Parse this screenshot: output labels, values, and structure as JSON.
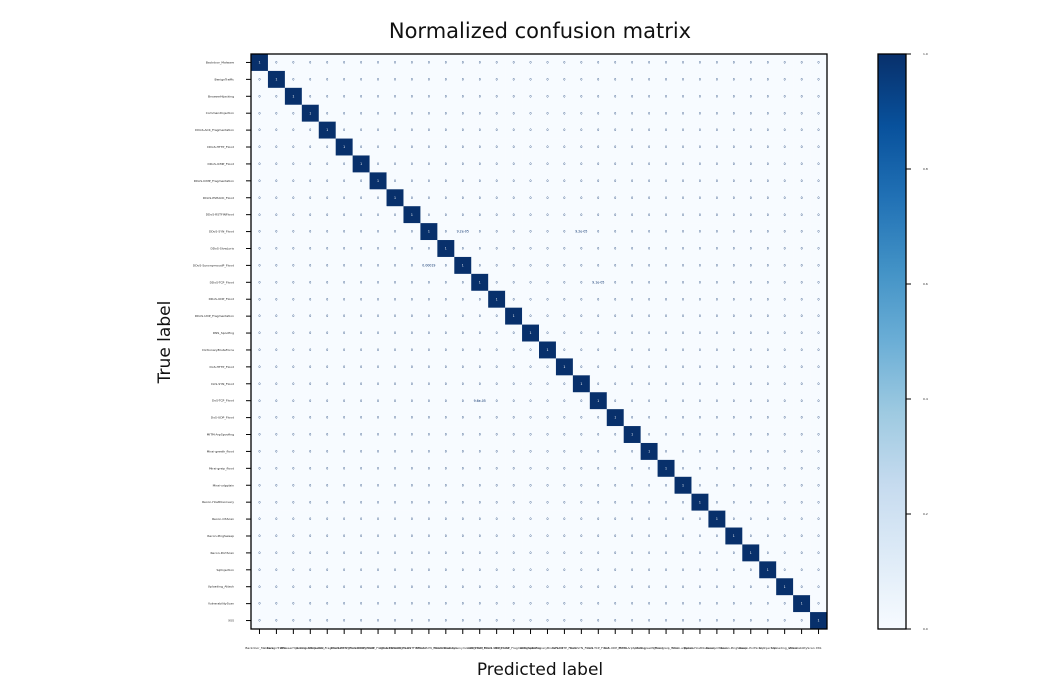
{
  "chart_data": {
    "type": "heatmap",
    "title": "Normalized confusion matrix",
    "xlabel": "Predicted label",
    "ylabel": "True label",
    "labels": [
      "Backdoor_Malware",
      "BenignTraffic",
      "BrowserHijacking",
      "CommandInjection",
      "DDoS-ACK_Fragmentation",
      "DDoS-HTTP_Flood",
      "DDoS-ICMP_Flood",
      "DDoS-ICMP_Fragmentation",
      "DDoS-PSHACK_Flood",
      "DDoS-RSTFINFlood",
      "DDoS-SYN_Flood",
      "DDoS-SlowLoris",
      "DDoS-SynonymousIP_Flood",
      "DDoS-TCP_Flood",
      "DDoS-UDP_Flood",
      "DDoS-UDP_Fragmentation",
      "DNS_Spoofing",
      "DictionaryBruteForce",
      "DoS-HTTP_Flood",
      "DoS-SYN_Flood",
      "DoS-TCP_Flood",
      "DoS-UDP_Flood",
      "MITM-ArpSpoofing",
      "Mirai-greeth_flood",
      "Mirai-greip_flood",
      "Mirai-udpplain",
      "Recon-HostDiscovery",
      "Recon-OSScan",
      "Recon-PingSweep",
      "Recon-PortScan",
      "SqlInjection",
      "Uploading_Attack",
      "VulnerabilityScan",
      "XSS"
    ],
    "diagonal_value": 1,
    "off_diagonal_value": 0,
    "off_diagonal_exceptions": [
      {
        "row": 10,
        "col": 12,
        "text": "9.2e-05",
        "value": 9.2e-05
      },
      {
        "row": 10,
        "col": 19,
        "text": "9.2e-05",
        "value": 9.2e-05
      },
      {
        "row": 12,
        "col": 10,
        "text": "0.00019",
        "value": 0.00019
      },
      {
        "row": 13,
        "col": 20,
        "text": "9.1e-05",
        "value": 9.1e-05
      },
      {
        "row": 20,
        "col": 13,
        "text": "9.6e-05",
        "value": 9.6e-05
      }
    ],
    "colormap": "Blues",
    "colorbar": {
      "min": 0.0,
      "max": 1.0,
      "ticks": [
        "0.0",
        "0.2",
        "0.4",
        "0.6",
        "0.8",
        "1.0"
      ]
    },
    "colors": {
      "low": "#f7fbff",
      "high": "#08306b",
      "text_on_dark": "#ffffff",
      "text_on_light": "#08306b"
    }
  }
}
